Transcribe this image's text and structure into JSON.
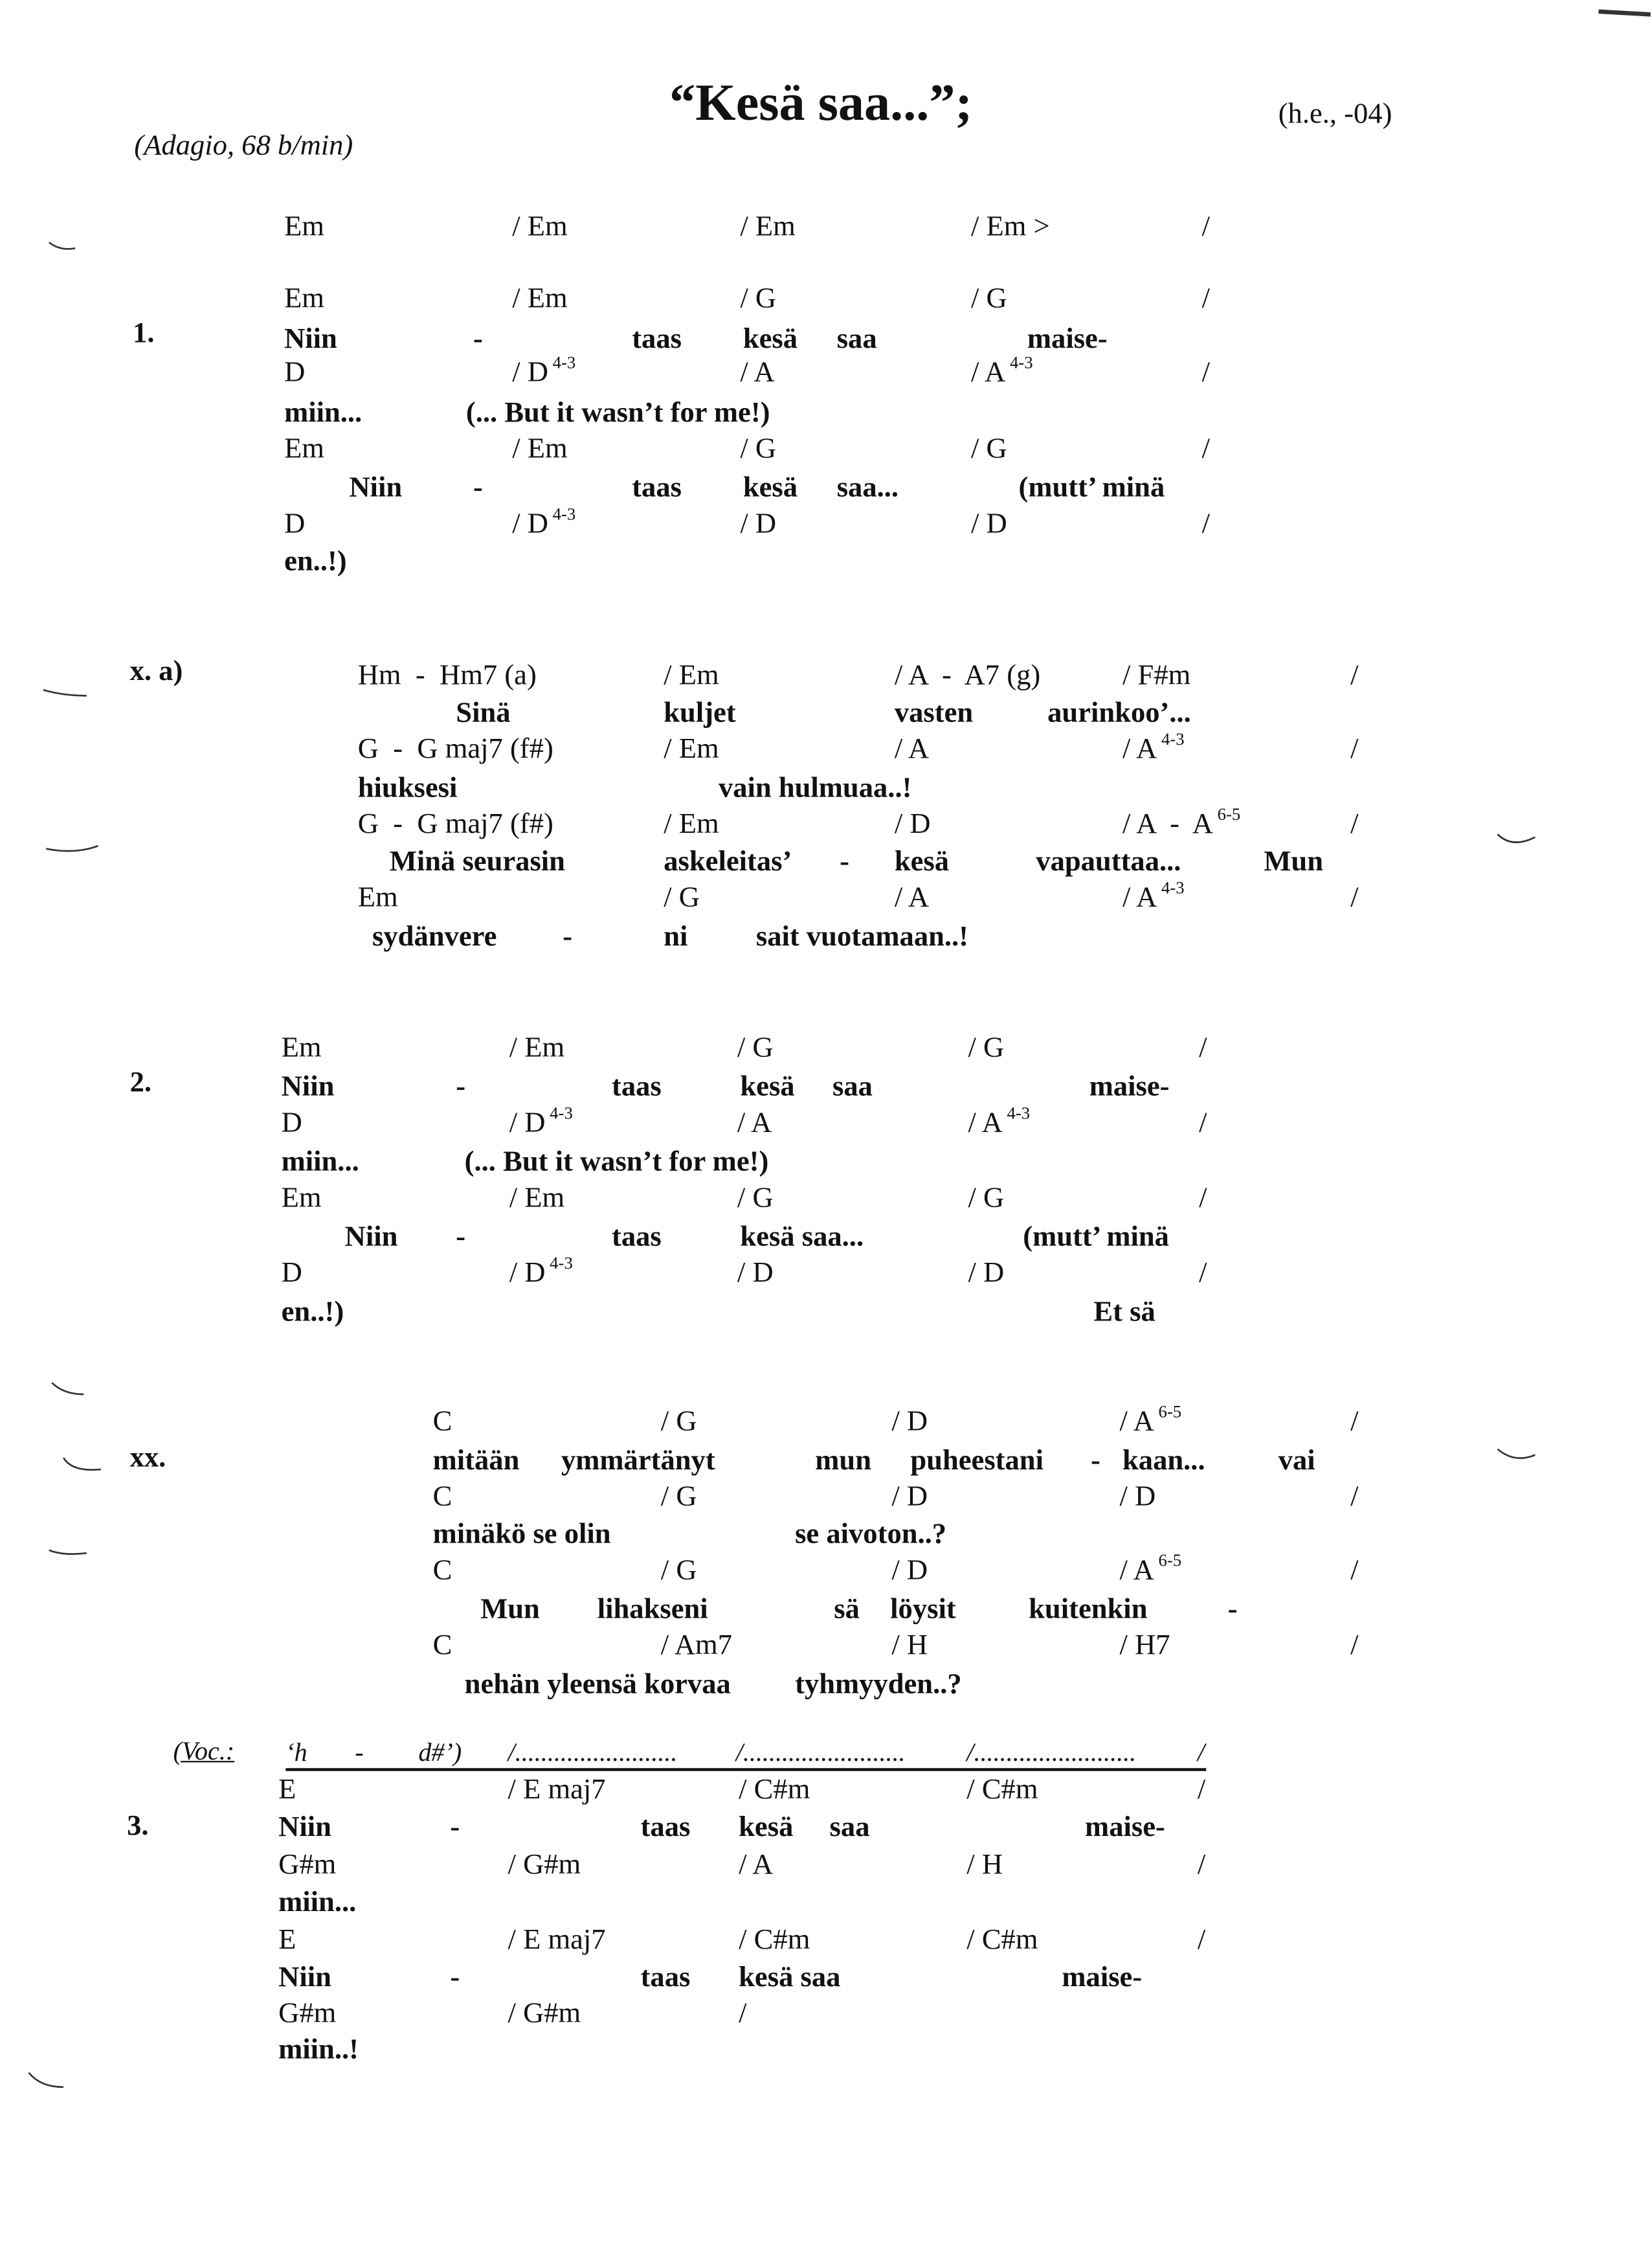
{
  "header": {
    "title": "“Kesä saa...”;",
    "tempo": "(Adagio, 68 b/min)",
    "author": "(h.e., -04)"
  },
  "intro": {
    "rows": [
      [
        "Em",
        "/ Em",
        "/ Em",
        "/ Em >",
        "/"
      ]
    ],
    "sups": {}
  },
  "verse1": {
    "label": "1.",
    "rows": [
      [
        "Em",
        "/ Em",
        "/ G",
        "/ G",
        "/"
      ],
      [
        "Niin",
        "-",
        "taas",
        "kesä",
        "saa",
        "maise-"
      ],
      [
        "D",
        "/ D",
        "/ A",
        "/ A",
        "/"
      ],
      [
        "miin...",
        "(... But it wasn’t for me!)"
      ],
      [
        "Em",
        "/ Em",
        "/ G",
        "/ G",
        "/"
      ],
      [
        "Niin",
        "-",
        "taas",
        "kesä",
        "saa...",
        "(mutt’ minä"
      ],
      [
        "D",
        "/ D",
        "/ D",
        "/ D",
        "/"
      ],
      [
        "en..!)"
      ]
    ],
    "sups": {
      "2-1": "4-3",
      "2-3": "4-3",
      "6-1": "4-3"
    }
  },
  "bridge": {
    "label": "x. a)",
    "rows": [
      [
        "Hm  -  Hm7 (a)",
        "/ Em",
        "/ A  -  A7 (g)",
        "/ F#m",
        "/"
      ],
      [
        "Sinä",
        "kuljet",
        "vasten",
        "aurinkoo’..."
      ],
      [
        "G  -  G maj7 (f#)",
        "/ Em",
        "/ A",
        "/ A",
        "/"
      ],
      [
        "hiuksesi",
        "vain hulmuaa..!"
      ],
      [
        "G  -  G maj7 (f#)",
        "/ Em",
        "/ D",
        "/ A  -  A",
        "/"
      ],
      [
        "Minä seurasin",
        "askeleitas’",
        "-",
        "kesä",
        "vapauttaa...",
        "Mun"
      ],
      [
        "Em",
        "/ G",
        "/ A",
        "/ A",
        "/"
      ],
      [
        "sydänvere",
        "-",
        "ni",
        "sait vuotamaan..!"
      ]
    ],
    "sups": {
      "2-3": "4-3",
      "4-3": "6-5",
      "6-3": "4-3"
    }
  },
  "verse2": {
    "label": "2.",
    "rows": [
      [
        "Em",
        "/ Em",
        "/ G",
        "/ G",
        "/"
      ],
      [
        "Niin",
        "-",
        "taas",
        "kesä",
        "saa",
        "maise-"
      ],
      [
        "D",
        "/ D",
        "/ A",
        "/ A",
        "/"
      ],
      [
        "miin...",
        "(... But it wasn’t for me!)"
      ],
      [
        "Em",
        "/ Em",
        "/ G",
        "/ G",
        "/"
      ],
      [
        "Niin",
        "-",
        "taas",
        "kesä saa...",
        "(mutt’ minä"
      ],
      [
        "D",
        "/ D",
        "/ D",
        "/ D",
        "/"
      ],
      [
        "en..!)",
        "Et sä"
      ]
    ],
    "sups": {
      "2-1": "4-3",
      "2-3": "4-3",
      "6-1": "4-3"
    }
  },
  "chorus": {
    "label": "xx.",
    "rows": [
      [
        "C",
        "/ G",
        "/ D",
        "/ A",
        "/"
      ],
      [
        "mitään",
        "ymmärtänyt",
        "mun",
        "puheestani",
        "-",
        "kaan...",
        "vai"
      ],
      [
        "C",
        "/ G",
        "/ D",
        "/ D",
        "/"
      ],
      [
        "minäkö se olin",
        "se aivoton..?"
      ],
      [
        "C",
        "/ G",
        "/ D",
        "/ A",
        "/"
      ],
      [
        "Mun",
        "lihakseni",
        "sä",
        "löysit",
        "kuitenkin",
        "-"
      ],
      [
        "C",
        "/ Am7",
        "/ H",
        "/ H7",
        "/"
      ],
      [
        "nehän yleensä korvaa",
        "tyhmyyden..?"
      ]
    ],
    "sups": {
      "0-3": "6-5",
      "4-3": "6-5"
    }
  },
  "vocal": {
    "label": "(Voc.:",
    "items": [
      "‘h",
      "-",
      "d#’)",
      "/.........................",
      "/.........................",
      "/.........................",
      "/"
    ]
  },
  "verse3": {
    "label": "3.",
    "rows": [
      [
        "E",
        "/ E maj7",
        "/ C#m",
        "/ C#m",
        "/"
      ],
      [
        "Niin",
        "-",
        "taas",
        "kesä",
        "saa",
        "maise-"
      ],
      [
        "G#m",
        "/ G#m",
        "/ A",
        "/ H",
        "/"
      ],
      [
        "miin..."
      ],
      [
        "E",
        "/ E maj7",
        "/ C#m",
        "/ C#m",
        "/"
      ],
      [
        "Niin",
        "-",
        "taas",
        "kesä saa",
        "maise-"
      ],
      [
        "G#m",
        "/ G#m",
        "/"
      ],
      [
        "miin..!"
      ]
    ],
    "sups": {}
  }
}
